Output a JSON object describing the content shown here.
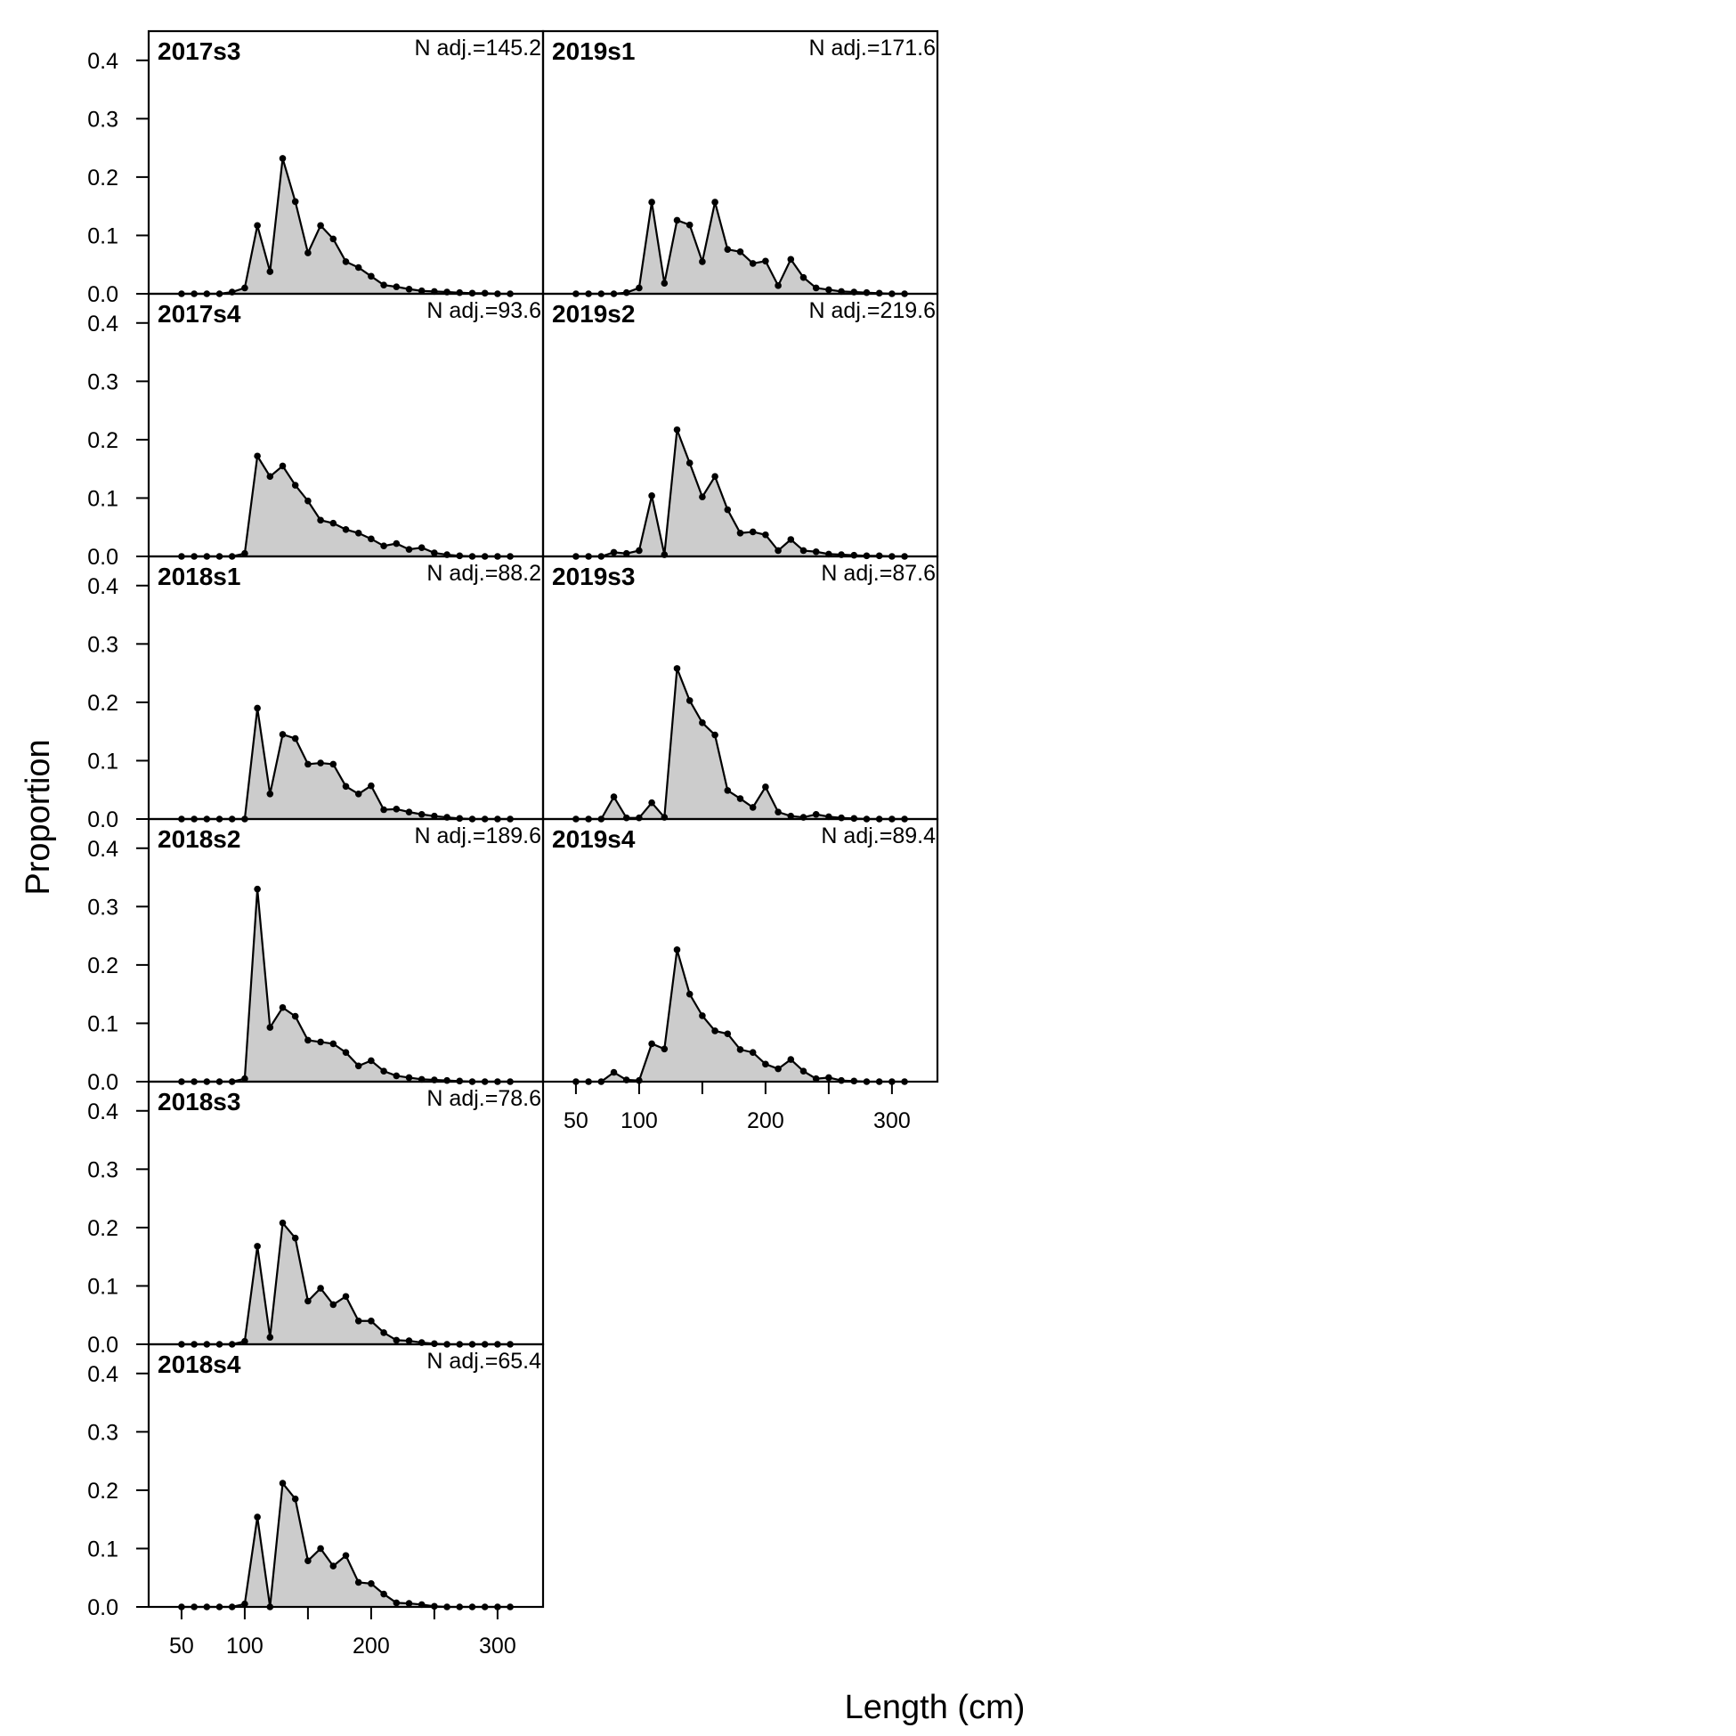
{
  "chart_data": {
    "type": "area",
    "xlabel": "Length (cm)",
    "ylabel": "Proportion",
    "xlim": [
      24,
      336
    ],
    "ylim": [
      0,
      0.45
    ],
    "x_ticks": [
      50,
      100,
      150,
      200,
      250,
      300
    ],
    "x_tick_labels": [
      "50",
      "100",
      "",
      "200",
      "",
      "300"
    ],
    "y_ticks": [
      0.0,
      0.1,
      0.2,
      0.3,
      0.4
    ],
    "y_tick_labels": [
      "0.0",
      "0.1",
      "0.2",
      "0.3",
      "0.4"
    ],
    "fill_color": "#cccccc",
    "line_color": "#000000",
    "x": [
      50,
      60,
      70,
      80,
      90,
      100,
      110,
      120,
      130,
      140,
      150,
      160,
      170,
      180,
      190,
      200,
      210,
      220,
      230,
      240,
      250,
      260,
      270,
      280,
      290,
      300,
      310
    ],
    "panels": [
      {
        "label": "2017s3",
        "n_label": "N adj.=145.2",
        "values": [
          0,
          0,
          0,
          0,
          0.003,
          0.01,
          0.117,
          0.038,
          0.232,
          0.158,
          0.07,
          0.117,
          0.094,
          0.055,
          0.045,
          0.03,
          0.015,
          0.012,
          0.008,
          0.005,
          0.004,
          0.003,
          0.002,
          0.001,
          0.001,
          0,
          0
        ]
      },
      {
        "label": "2017s4",
        "n_label": "N adj.=93.6",
        "values": [
          0,
          0,
          0,
          0,
          0,
          0.005,
          0.172,
          0.137,
          0.155,
          0.122,
          0.095,
          0.062,
          0.057,
          0.046,
          0.04,
          0.03,
          0.018,
          0.022,
          0.012,
          0.015,
          0.006,
          0.003,
          0.001,
          0,
          0,
          0,
          0
        ]
      },
      {
        "label": "2018s1",
        "n_label": "N adj.=88.2",
        "values": [
          0,
          0,
          0,
          0,
          0,
          0,
          0.19,
          0.043,
          0.145,
          0.138,
          0.094,
          0.096,
          0.094,
          0.056,
          0.043,
          0.057,
          0.016,
          0.017,
          0.012,
          0.008,
          0.005,
          0.003,
          0.001,
          0,
          0,
          0,
          0
        ]
      },
      {
        "label": "2018s2",
        "n_label": "N adj.=189.6",
        "values": [
          0,
          0,
          0,
          0,
          0,
          0.005,
          0.33,
          0.093,
          0.127,
          0.112,
          0.071,
          0.068,
          0.065,
          0.05,
          0.027,
          0.036,
          0.018,
          0.01,
          0.007,
          0.004,
          0.003,
          0.002,
          0.001,
          0,
          0,
          0,
          0
        ]
      },
      {
        "label": "2018s3",
        "n_label": "N adj.=78.6",
        "values": [
          0,
          0,
          0,
          0,
          0,
          0.005,
          0.168,
          0.012,
          0.208,
          0.182,
          0.074,
          0.096,
          0.068,
          0.082,
          0.04,
          0.04,
          0.02,
          0.007,
          0.006,
          0.003,
          0.001,
          0,
          0,
          0,
          0,
          0,
          0
        ]
      },
      {
        "label": "2018s4",
        "n_label": "N adj.=65.4",
        "values": [
          0,
          0,
          0,
          0,
          0,
          0.005,
          0.154,
          0,
          0.212,
          0.185,
          0.079,
          0.1,
          0.07,
          0.088,
          0.042,
          0.04,
          0.022,
          0.007,
          0.006,
          0.004,
          0.001,
          0,
          0,
          0,
          0,
          0,
          0
        ]
      },
      {
        "label": "2019s1",
        "n_label": "N adj.=171.6",
        "values": [
          0,
          0,
          0,
          0,
          0.002,
          0.01,
          0.157,
          0.018,
          0.126,
          0.118,
          0.055,
          0.157,
          0.076,
          0.072,
          0.052,
          0.056,
          0.014,
          0.059,
          0.028,
          0.01,
          0.007,
          0.004,
          0.003,
          0.002,
          0.001,
          0,
          0
        ]
      },
      {
        "label": "2019s2",
        "n_label": "N adj.=219.6",
        "values": [
          0,
          0,
          0,
          0.007,
          0.005,
          0.01,
          0.104,
          0.003,
          0.217,
          0.16,
          0.102,
          0.137,
          0.08,
          0.04,
          0.042,
          0.037,
          0.01,
          0.029,
          0.01,
          0.008,
          0.004,
          0.003,
          0.002,
          0.001,
          0.001,
          0,
          0
        ]
      },
      {
        "label": "2019s3",
        "n_label": "N adj.=87.6",
        "values": [
          0,
          0,
          0,
          0.038,
          0.002,
          0.002,
          0.028,
          0.003,
          0.258,
          0.203,
          0.165,
          0.144,
          0.049,
          0.035,
          0.02,
          0.055,
          0.012,
          0.005,
          0.003,
          0.008,
          0.004,
          0.002,
          0.001,
          0,
          0,
          0,
          0
        ]
      },
      {
        "label": "2019s4",
        "n_label": "N adj.=89.4",
        "values": [
          0,
          0,
          0,
          0.016,
          0.003,
          0.002,
          0.065,
          0.056,
          0.226,
          0.15,
          0.113,
          0.087,
          0.082,
          0.055,
          0.05,
          0.03,
          0.022,
          0.038,
          0.018,
          0.005,
          0.007,
          0.002,
          0.001,
          0,
          0,
          0,
          0
        ]
      }
    ]
  }
}
